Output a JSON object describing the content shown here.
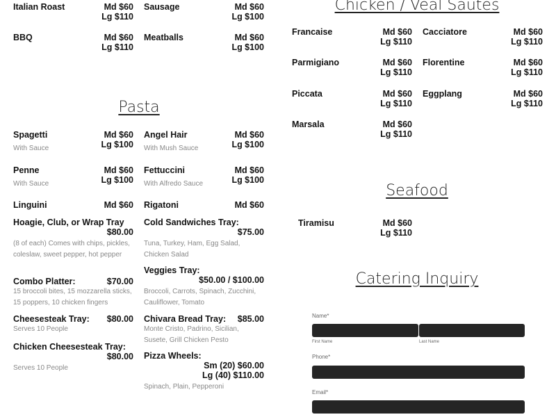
{
  "pizza_top": [
    {
      "name": "Italian Roast",
      "md": "Md $60",
      "lg": "Lg $110"
    },
    {
      "name": "Sausage",
      "md": "Md $60",
      "lg": "Lg $100"
    },
    {
      "name": "BBQ",
      "md": "Md $60",
      "lg": "Lg $110"
    },
    {
      "name": "Meatballs",
      "md": "Md $60",
      "lg": "Lg $100"
    }
  ],
  "pasta": {
    "title": "Pasta",
    "items": [
      {
        "name": "Spagetti",
        "md": "Md $60",
        "lg": "Lg $100",
        "desc": "With Sauce"
      },
      {
        "name": "Angel Hair",
        "md": "Md $60",
        "lg": "Lg $100",
        "desc": "With Mush Sauce"
      },
      {
        "name": "Penne",
        "md": "Md $60",
        "lg": "Lg $100",
        "desc": "With Sauce"
      },
      {
        "name": "Fettuccini",
        "md": "Md $60",
        "lg": "Lg $100",
        "desc": "With Alfredo Sauce"
      },
      {
        "name": "Linguini",
        "md": "Md $60"
      },
      {
        "name": "Rigatoni",
        "md": "Md $60"
      }
    ]
  },
  "trays": [
    {
      "name": "Hoagie, Club, or Wrap Tray",
      "price": "$80.00",
      "desc": "(8 of each) Comes with chips, pickles, coleslaw, sweet pepper, hot pepper"
    },
    {
      "name": "Cold Sandwiches Tray:",
      "price": "$75.00",
      "desc": "Tuna, Turkey, Ham, Egg Salad, Chicken Salad"
    },
    {
      "name": "Combo Platter:",
      "price": "$70.00",
      "desc": "15 broccoli bites, 15 mozzarella sticks, 15 poppers, 10 chicken fingers"
    },
    {
      "name": "Veggies Tray:",
      "price": "$50.00 / $100.00",
      "desc": "Broccoli, Carrots, Spinach, Zucchini, Cauliflower, Tomato"
    },
    {
      "name": "Cheesesteak Tray:",
      "price": "$80.00",
      "desc": "Serves 10 People"
    },
    {
      "name": "Chivara Bread Tray:",
      "price": "$85.00",
      "desc": "Monte Cristo, Padrino, Sicilian, Susete, Grill Chicken Pesto"
    },
    {
      "name": "Chicken Cheesesteak Tray:",
      "price": "$80.00",
      "desc": "Serves 10 People"
    },
    {
      "name": "Pizza Wheels:",
      "price": "Sm (20) $60.00",
      "price2": "Lg (40) $110.00",
      "desc": "Spinach, Plain, Pepperoni"
    }
  ],
  "sautes": {
    "title": "Chicken / Veal Sautes",
    "items": [
      {
        "name": "Francaise",
        "md": "Md $60",
        "lg": "Lg $110"
      },
      {
        "name": "Cacciatore",
        "md": "Md $60",
        "lg": "Lg $110"
      },
      {
        "name": "Parmigiano",
        "md": "Md $60",
        "lg": "Lg $110"
      },
      {
        "name": "Florentine",
        "md": "Md $60",
        "lg": "Lg $110"
      },
      {
        "name": "Piccata",
        "md": "Md $60",
        "lg": "Lg $110"
      },
      {
        "name": "Eggplang",
        "md": "Md $60",
        "lg": "Lg $110"
      },
      {
        "name": "Marsala",
        "md": "Md $60",
        "lg": "Lg $110"
      }
    ]
  },
  "seafood": {
    "title": "Seafood",
    "items": [
      {
        "name": "Tiramisu",
        "md": "Md $60",
        "lg": "Lg $110"
      }
    ]
  },
  "form": {
    "title": "Catering Inquiry",
    "name_label": "Name*",
    "first_label": "First Name",
    "last_label": "Last Name",
    "phone_label": "Phone*",
    "email_label": "Email*"
  }
}
